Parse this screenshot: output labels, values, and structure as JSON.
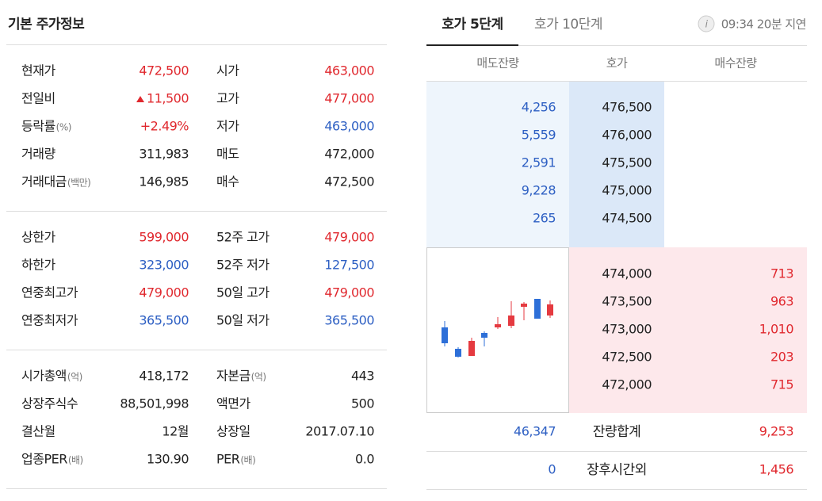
{
  "header": {
    "title": "기본 주가정보"
  },
  "summary": {
    "groups": [
      [
        [
          {
            "label": "현재가",
            "value": "472,500",
            "color": "#e0282e"
          },
          {
            "label": "시가",
            "value": "463,000",
            "color": "#e0282e"
          }
        ],
        [
          {
            "label": "전일비",
            "value": "11,500",
            "color": "#e0282e",
            "arrow": "up"
          },
          {
            "label": "고가",
            "value": "477,000",
            "color": "#e0282e"
          }
        ],
        [
          {
            "label": "등락률",
            "unit": "(%)",
            "value": "+2.49%",
            "color": "#e0282e"
          },
          {
            "label": "저가",
            "value": "463,000",
            "color": "#2d5fc3"
          }
        ],
        [
          {
            "label": "거래량",
            "value": "311,983",
            "color": "#222222"
          },
          {
            "label": "매도",
            "value": "472,000",
            "color": "#222222"
          }
        ],
        [
          {
            "label": "거래대금",
            "unit": "(백만)",
            "value": "146,985",
            "color": "#222222"
          },
          {
            "label": "매수",
            "value": "472,500",
            "color": "#222222"
          }
        ]
      ],
      [
        [
          {
            "label": "상한가",
            "value": "599,000",
            "color": "#e0282e"
          },
          {
            "label": "52주 고가",
            "value": "479,000",
            "color": "#e0282e"
          }
        ],
        [
          {
            "label": "하한가",
            "value": "323,000",
            "color": "#2d5fc3"
          },
          {
            "label": "52주 저가",
            "value": "127,500",
            "color": "#2d5fc3"
          }
        ],
        [
          {
            "label": "연중최고가",
            "value": "479,000",
            "color": "#e0282e"
          },
          {
            "label": "50일 고가",
            "value": "479,000",
            "color": "#e0282e"
          }
        ],
        [
          {
            "label": "연중최저가",
            "value": "365,500",
            "color": "#2d5fc3"
          },
          {
            "label": "50일 저가",
            "value": "365,500",
            "color": "#2d5fc3"
          }
        ]
      ],
      [
        [
          {
            "label": "시가총액",
            "unit": "(억)",
            "value": "418,172",
            "color": "#222222"
          },
          {
            "label": "자본금",
            "unit": "(억)",
            "value": "443",
            "color": "#222222"
          }
        ],
        [
          {
            "label": "상장주식수",
            "value": "88,501,998",
            "color": "#222222"
          },
          {
            "label": "액면가",
            "value": "500",
            "color": "#222222"
          }
        ],
        [
          {
            "label": "결산월",
            "value": "12월",
            "color": "#222222"
          },
          {
            "label": "상장일",
            "value": "2017.07.10",
            "color": "#222222"
          }
        ],
        [
          {
            "label": "업종PER",
            "unit": "(배)",
            "value": "130.90",
            "color": "#222222"
          },
          {
            "label": "PER",
            "unit": "(배)",
            "value": "0.0",
            "color": "#222222"
          }
        ]
      ]
    ]
  },
  "orderbook": {
    "tabs": [
      "호가 5단계",
      "호가 10단계"
    ],
    "delay": "09:34 20분 지연",
    "columns": [
      "매도잔량",
      "호가",
      "매수잔량"
    ],
    "asks": [
      {
        "qty": "4,256",
        "price": "476,500"
      },
      {
        "qty": "5,559",
        "price": "476,000"
      },
      {
        "qty": "2,591",
        "price": "475,500"
      },
      {
        "qty": "9,228",
        "price": "475,000"
      },
      {
        "qty": "265",
        "price": "474,500"
      }
    ],
    "bids": [
      {
        "price": "474,000",
        "qty": "713"
      },
      {
        "price": "473,500",
        "qty": "963"
      },
      {
        "price": "473,000",
        "qty": "1,010"
      },
      {
        "price": "472,500",
        "qty": "203"
      },
      {
        "price": "472,000",
        "qty": "715"
      }
    ],
    "totals": [
      {
        "sell": "46,347",
        "label": "잔량합계",
        "buy": "9,253"
      },
      {
        "sell": "0",
        "label": "장후시간외",
        "buy": "1,456"
      }
    ]
  }
}
